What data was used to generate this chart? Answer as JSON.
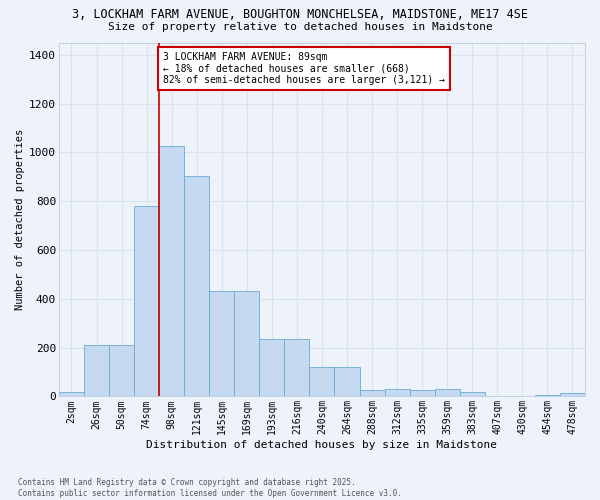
{
  "title_line1": "3, LOCKHAM FARM AVENUE, BOUGHTON MONCHELSEA, MAIDSTONE, ME17 4SE",
  "title_line2": "Size of property relative to detached houses in Maidstone",
  "xlabel": "Distribution of detached houses by size in Maidstone",
  "ylabel": "Number of detached properties",
  "categories": [
    "2sqm",
    "26sqm",
    "50sqm",
    "74sqm",
    "98sqm",
    "121sqm",
    "145sqm",
    "169sqm",
    "193sqm",
    "216sqm",
    "240sqm",
    "264sqm",
    "288sqm",
    "312sqm",
    "335sqm",
    "359sqm",
    "383sqm",
    "407sqm",
    "430sqm",
    "454sqm",
    "478sqm"
  ],
  "values": [
    20,
    210,
    210,
    780,
    1025,
    905,
    430,
    430,
    235,
    235,
    120,
    120,
    25,
    30,
    25,
    30,
    20,
    0,
    0,
    5,
    12
  ],
  "bar_color": "#c5d9f0",
  "bar_edge_color": "#6aaad4",
  "background_color": "#eef2fa",
  "grid_color": "#d8e4f0",
  "red_line_index": 4,
  "annotation_title": "3 LOCKHAM FARM AVENUE: 89sqm",
  "annotation_line1": "← 18% of detached houses are smaller (668)",
  "annotation_line2": "82% of semi-detached houses are larger (3,121) →",
  "annotation_box_facecolor": "#ffffff",
  "annotation_box_edgecolor": "#cc0000",
  "ylim": [
    0,
    1450
  ],
  "yticks": [
    0,
    200,
    400,
    600,
    800,
    1000,
    1200,
    1400
  ],
  "footnote_line1": "Contains HM Land Registry data © Crown copyright and database right 2025.",
  "footnote_line2": "Contains public sector information licensed under the Open Government Licence v3.0."
}
